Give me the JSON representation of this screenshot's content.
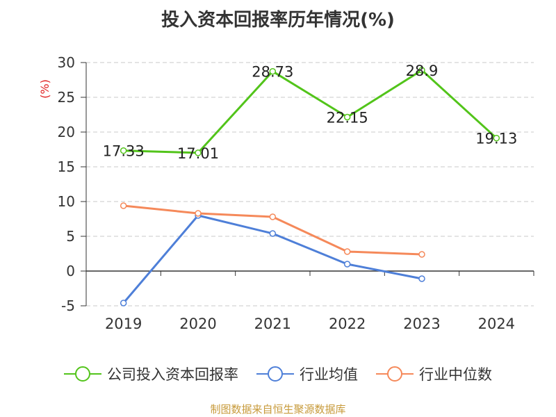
{
  "title": "投入资本回报率历年情况(%)",
  "source": "制图数据来自恒生聚源数据库",
  "chart_data": {
    "type": "line",
    "categories": [
      "2019",
      "2020",
      "2021",
      "2022",
      "2023",
      "2024"
    ],
    "ylabel": "(%)",
    "ylim": [
      -5,
      30
    ],
    "yticks": [
      -5,
      0,
      5,
      10,
      15,
      20,
      25,
      30
    ],
    "grid": true,
    "legend_position": "bottom",
    "series": [
      {
        "name": "公司投入资本回报率",
        "color": "#52c41a",
        "values": [
          17.33,
          17.01,
          28.73,
          22.15,
          28.9,
          19.13
        ],
        "labels": [
          "17.33",
          "17.01",
          "28.73",
          "22.15",
          "28.9",
          "19.13"
        ]
      },
      {
        "name": "行业均值",
        "color": "#4e7fd8",
        "values": [
          -4.6,
          8.0,
          5.4,
          1.0,
          -1.1,
          null
        ]
      },
      {
        "name": "行业中位数",
        "color": "#f5895a",
        "values": [
          9.4,
          8.3,
          7.8,
          2.8,
          2.4,
          null
        ]
      }
    ]
  }
}
